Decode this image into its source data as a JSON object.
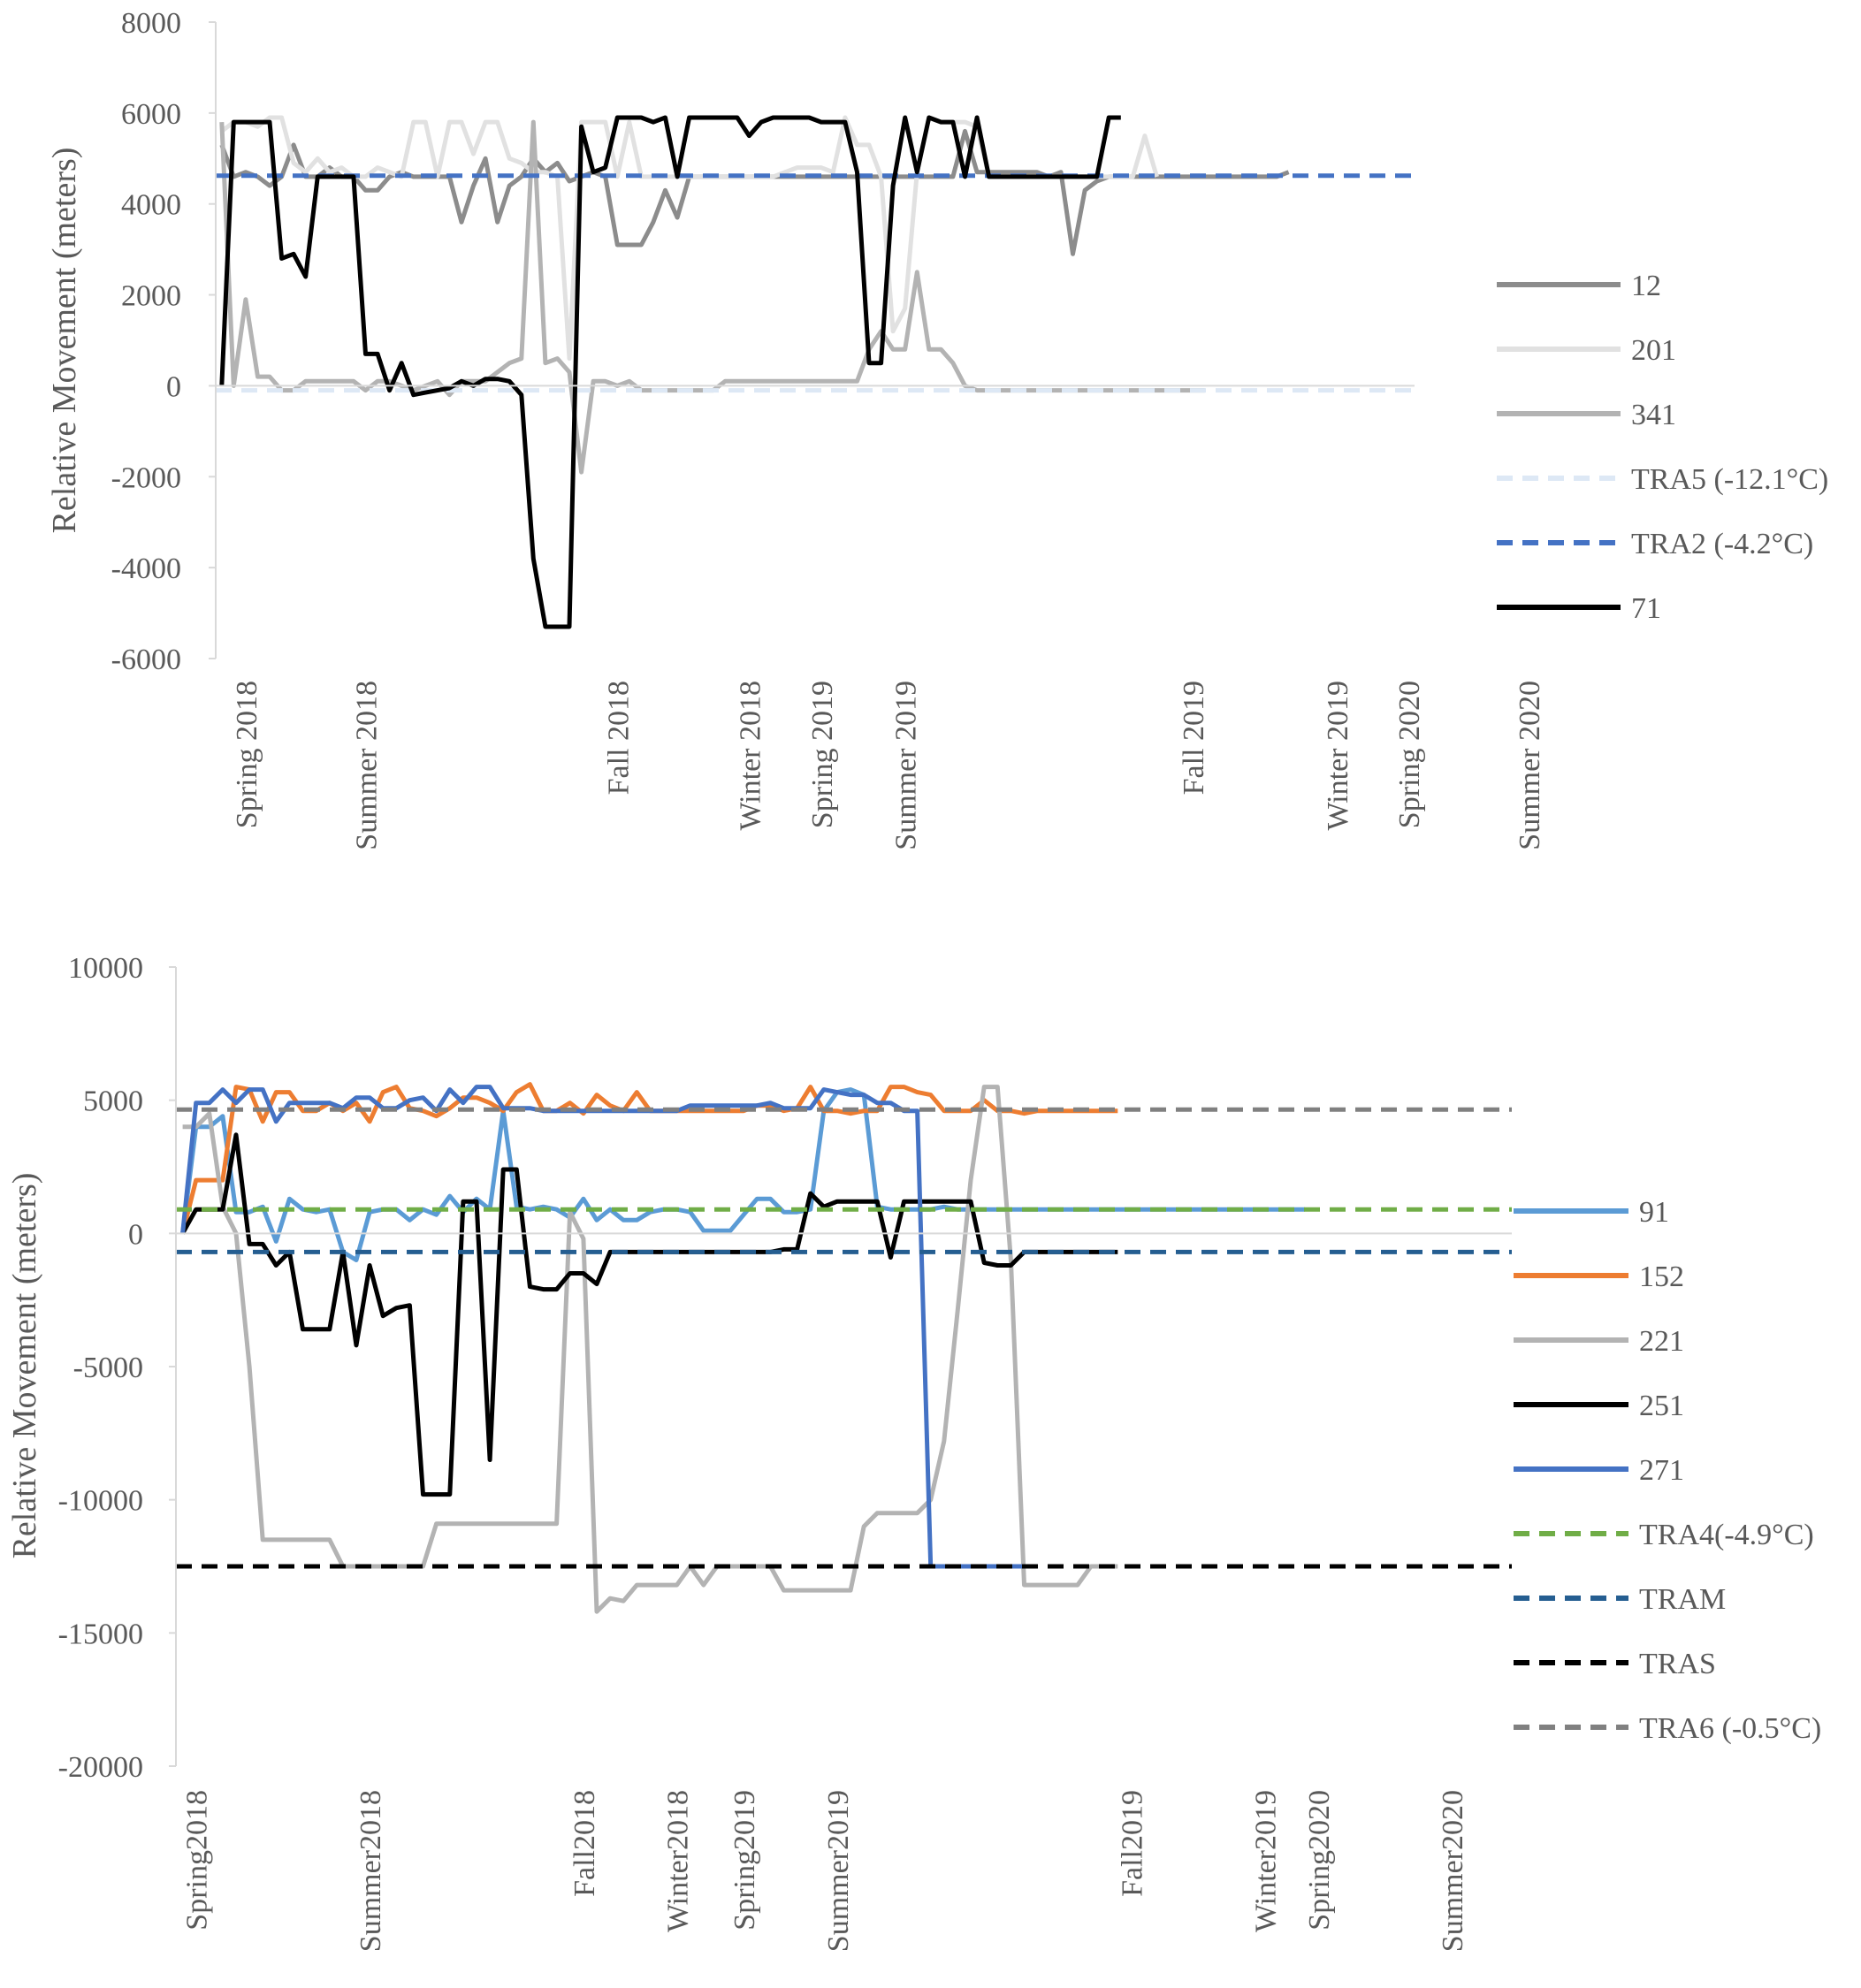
{
  "chart_data": [
    {
      "type": "line",
      "ylabel": "Relative Movement (meters)",
      "ylim": [
        -6000,
        8000
      ],
      "y_ticks": [
        8000,
        6000,
        4000,
        2000,
        0,
        -2000,
        -4000,
        -6000
      ],
      "y_tick_labels": [
        "8000",
        "6000",
        "4000",
        "2000",
        "0",
        "-2000",
        "-4000",
        "-6000"
      ],
      "x_count": 100,
      "x_labels": [
        {
          "text": "Spring 2018",
          "index": 2
        },
        {
          "text": "Summer 2018",
          "index": 12
        },
        {
          "text": "Fall 2018",
          "index": 33
        },
        {
          "text": "Winter 2018",
          "index": 44
        },
        {
          "text": "Spring 2019",
          "index": 50
        },
        {
          "text": "Summer 2019",
          "index": 57
        },
        {
          "text": "Fall 2019",
          "index": 81
        },
        {
          "text": "Winter 2019",
          "index": 93
        },
        {
          "text": "Spring 2020",
          "index": 99
        },
        {
          "text": "Summer 2020",
          "index": 109
        }
      ],
      "series": [
        {
          "name": "12",
          "color": "#8c8c8c",
          "dash": false,
          "values": [
            5300,
            4600,
            4700,
            4600,
            4400,
            4600,
            5300,
            4600,
            4600,
            4800,
            4600,
            4600,
            4300,
            4300,
            4600,
            4700,
            4600,
            4600,
            4600,
            4600,
            3600,
            4400,
            5000,
            3600,
            4400,
            4600,
            5000,
            4700,
            4900,
            4500,
            4600,
            4700,
            4600,
            3100,
            3100,
            3100,
            3600,
            4300,
            3700,
            4600,
            4600,
            4600,
            4600,
            4600,
            4600,
            4600,
            4600,
            4600,
            4600,
            4600,
            4600,
            4600,
            4600,
            4600,
            4600,
            4600,
            4600,
            4600,
            4600,
            4600,
            4600,
            4600,
            5600,
            4700,
            4700,
            4700,
            4700,
            4700,
            4700,
            4600,
            4700,
            2900,
            4300,
            4500,
            4600,
            4600,
            4600,
            4600,
            4600,
            4600,
            4600,
            4600,
            4600,
            4600,
            4600,
            4600,
            4600,
            4600,
            4600,
            4700
          ]
        },
        {
          "name": "201",
          "color": "#e1e1e1",
          "dash": false,
          "values": [
            5600,
            5800,
            5800,
            5700,
            5900,
            5900,
            4900,
            4700,
            5000,
            4700,
            4800,
            4600,
            4600,
            4800,
            4700,
            4600,
            5800,
            5800,
            4600,
            5800,
            5800,
            5100,
            5800,
            5800,
            5000,
            4900,
            4700,
            4700,
            4600,
            600,
            5800,
            5800,
            5800,
            4600,
            5800,
            4600,
            4600,
            4600,
            4600,
            4600,
            4600,
            4600,
            4600,
            4600,
            4600,
            4600,
            4600,
            4700,
            4800,
            4800,
            4800,
            4700,
            5900,
            5300,
            5300,
            4600,
            1200,
            1700,
            4700,
            5900,
            5800,
            5800,
            5800,
            5700,
            4600,
            4600,
            4600,
            4600,
            4600,
            4600,
            4600,
            4600,
            4600,
            4600,
            4600,
            4600,
            4600,
            5500,
            4600
          ]
        },
        {
          "name": "341",
          "color": "#b3b3b3",
          "dash": false,
          "values": [
            5800,
            0,
            1900,
            200,
            200,
            -100,
            -100,
            100,
            100,
            100,
            100,
            100,
            -100,
            100,
            100,
            0,
            -100,
            0,
            100,
            -200,
            100,
            100,
            100,
            300,
            500,
            600,
            5800,
            500,
            600,
            300,
            -1900,
            100,
            100,
            0,
            100,
            -100,
            -100,
            -100,
            -100,
            -100,
            -100,
            -100,
            100,
            100,
            100,
            100,
            100,
            100,
            100,
            100,
            100,
            100,
            100,
            100,
            800,
            1200,
            800,
            800,
            2500,
            800,
            800,
            500,
            0,
            -100,
            -100,
            -100,
            -100,
            -100,
            -100,
            -100,
            -100,
            -100,
            -100,
            -100,
            -100,
            -100,
            -100,
            -100,
            -100,
            -100,
            -100,
            -100,
            -100
          ]
        },
        {
          "name": "TRA5 (-12.1°C)",
          "color": "#dde8f5",
          "dash": true,
          "values": [
            -100,
            -100
          ]
        },
        {
          "name": "TRA2 (-4.2°C)",
          "color": "#4472c4",
          "dash": true,
          "values": [
            4620,
            4620
          ]
        },
        {
          "name": "71",
          "color": "#000000",
          "dash": false,
          "values": [
            0,
            5800,
            5800,
            5800,
            5800,
            2800,
            2900,
            2400,
            4600,
            4600,
            4600,
            4600,
            700,
            700,
            -100,
            500,
            -200,
            -150,
            -100,
            -50,
            100,
            0,
            150,
            150,
            100,
            -200,
            -3800,
            -5300,
            -5300,
            -5300,
            5700,
            4700,
            4800,
            5900,
            5900,
            5900,
            5800,
            5900,
            4600,
            5900,
            5900,
            5900,
            5900,
            5900,
            5500,
            5800,
            5900,
            5900,
            5900,
            5900,
            5800,
            5800,
            5800,
            4700,
            500,
            500,
            4400,
            5900,
            4700,
            5900,
            5800,
            5800,
            4600,
            5900,
            4600,
            4600,
            4600,
            4600,
            4600,
            4600,
            4600,
            4600,
            4600,
            4600,
            5900,
            5900
          ]
        }
      ]
    },
    {
      "type": "line",
      "ylabel": "Relative Movement (meters)",
      "ylim": [
        -20000,
        10000
      ],
      "y_ticks": [
        10000,
        5000,
        0,
        -5000,
        -10000,
        -15000,
        -20000
      ],
      "y_tick_labels": [
        "10000",
        "5000",
        "0",
        "-5000",
        "-10000",
        "-15000",
        "-20000"
      ],
      "x_count": 100,
      "x_labels": [
        {
          "text": "Spring2018",
          "index": 1
        },
        {
          "text": "Summer2018",
          "index": 14
        },
        {
          "text": "Fall2018",
          "index": 30
        },
        {
          "text": "Winter2018",
          "index": 37
        },
        {
          "text": "Spring2019",
          "index": 42
        },
        {
          "text": "Summer2019",
          "index": 49
        },
        {
          "text": "Fall2019",
          "index": 71
        },
        {
          "text": "Winter2019",
          "index": 81
        },
        {
          "text": "Spring2020",
          "index": 85
        },
        {
          "text": "Summer2020",
          "index": 95
        }
      ],
      "series": [
        {
          "name": "91",
          "color": "#5b9bd5",
          "dash": false,
          "values": [
            0,
            4000,
            4000,
            4400,
            800,
            800,
            1000,
            -300,
            1300,
            900,
            800,
            900,
            -700,
            -1000,
            800,
            900,
            900,
            500,
            900,
            700,
            1400,
            800,
            1300,
            900,
            4600,
            1000,
            900,
            1000,
            900,
            600,
            1300,
            500,
            900,
            500,
            500,
            800,
            900,
            900,
            800,
            100,
            100,
            100,
            700,
            1300,
            1300,
            800,
            800,
            900,
            4600,
            5300,
            5400,
            5200,
            1000,
            900,
            900,
            900,
            900,
            1000,
            900,
            900,
            900,
            900,
            900,
            900,
            900,
            900,
            900,
            900,
            900,
            900,
            900,
            900,
            900,
            900,
            900,
            900,
            900,
            900,
            900,
            900,
            900,
            900,
            900,
            900,
            900
          ]
        },
        {
          "name": "152",
          "color": "#ed7d31",
          "dash": false,
          "values": [
            0,
            2000,
            2000,
            2000,
            5500,
            5400,
            4200,
            5300,
            5300,
            4600,
            4600,
            4900,
            4600,
            4900,
            4200,
            5300,
            5500,
            4700,
            4600,
            4400,
            4700,
            5100,
            5100,
            4900,
            4600,
            5300,
            5600,
            4600,
            4600,
            4900,
            4500,
            5200,
            4800,
            4600,
            5300,
            4600,
            4600,
            4600,
            4600,
            4600,
            4600,
            4600,
            4600,
            4800,
            4800,
            4600,
            4700,
            5500,
            4600,
            4600,
            4500,
            4600,
            4600,
            5500,
            5500,
            5300,
            5200,
            4600,
            4600,
            4600,
            5000,
            4600,
            4600,
            4500,
            4600,
            4600,
            4600,
            4600,
            4600,
            4600,
            4600
          ]
        },
        {
          "name": "221",
          "color": "#b3b3b3",
          "dash": false,
          "values": [
            4000,
            4000,
            4500,
            1000,
            0,
            -5000,
            -11500,
            -11500,
            -11500,
            -11500,
            -11500,
            -11500,
            -12500,
            -12500,
            -12500,
            -12500,
            -12500,
            -12500,
            -12500,
            -10900,
            -10900,
            -10900,
            -10900,
            -10900,
            -10900,
            -10900,
            -10900,
            -10900,
            -10900,
            800,
            -200,
            -14200,
            -13700,
            -13800,
            -13200,
            -13200,
            -13200,
            -13200,
            -12500,
            -13200,
            -12500,
            -12500,
            -12500,
            -12500,
            -12500,
            -13400,
            -13400,
            -13400,
            -13400,
            -13400,
            -13400,
            -11000,
            -10500,
            -10500,
            -10500,
            -10500,
            -10000,
            -7800,
            -3000,
            2000,
            5500,
            5500,
            -1000,
            -13200,
            -13200,
            -13200,
            -13200,
            -13200,
            -12500,
            -12500,
            -12500
          ]
        },
        {
          "name": "251",
          "color": "#000000",
          "dash": false,
          "values": [
            0,
            900,
            900,
            900,
            3700,
            -400,
            -400,
            -1200,
            -700,
            -3600,
            -3600,
            -3600,
            -700,
            -4200,
            -1200,
            -3100,
            -2800,
            -2700,
            -9800,
            -9800,
            -9800,
            1200,
            1200,
            -8500,
            2400,
            2400,
            -2000,
            -2100,
            -2100,
            -1500,
            -1500,
            -1900,
            -700,
            -700,
            -700,
            -700,
            -700,
            -700,
            -700,
            -700,
            -700,
            -700,
            -700,
            -700,
            -700,
            -600,
            -600,
            1500,
            1000,
            1200,
            1200,
            1200,
            1200,
            -900,
            1200,
            1200,
            1200,
            1200,
            1200,
            1200,
            -1100,
            -1200,
            -1200,
            -700,
            -700,
            -700,
            -700,
            -700,
            -700,
            -700,
            -700
          ]
        },
        {
          "name": "271",
          "color": "#4472c4",
          "dash": false,
          "values": [
            0,
            4900,
            4900,
            5400,
            4900,
            5400,
            5400,
            4200,
            4900,
            4900,
            4900,
            4900,
            4700,
            5100,
            5100,
            4700,
            4700,
            5000,
            5100,
            4600,
            5400,
            4900,
            5500,
            5500,
            4700,
            4700,
            4700,
            4600,
            4600,
            4600,
            4600,
            4600,
            4600,
            4600,
            4600,
            4600,
            4600,
            4600,
            4800,
            4800,
            4800,
            4800,
            4800,
            4800,
            4900,
            4700,
            4700,
            4700,
            5400,
            5300,
            5200,
            5200,
            4900,
            4900,
            4600,
            4600,
            -12500,
            -12500,
            -12500,
            -12500,
            -12500,
            -12500,
            -12500,
            -12500,
            -12500
          ]
        },
        {
          "name": "TRA4(-4.9°C)",
          "color": "#70ad47",
          "dash": true,
          "values": [
            900,
            900
          ]
        },
        {
          "name": "TRAM",
          "color": "#255e91",
          "dash": true,
          "values": [
            -700,
            -700
          ]
        },
        {
          "name": "TRAS",
          "color": "#000000",
          "dash": true,
          "values": [
            -12500,
            -12500
          ]
        },
        {
          "name": "TRA6 (-0.5°C)",
          "color": "#808080",
          "dash": true,
          "values": [
            4650,
            4650
          ]
        }
      ]
    }
  ]
}
